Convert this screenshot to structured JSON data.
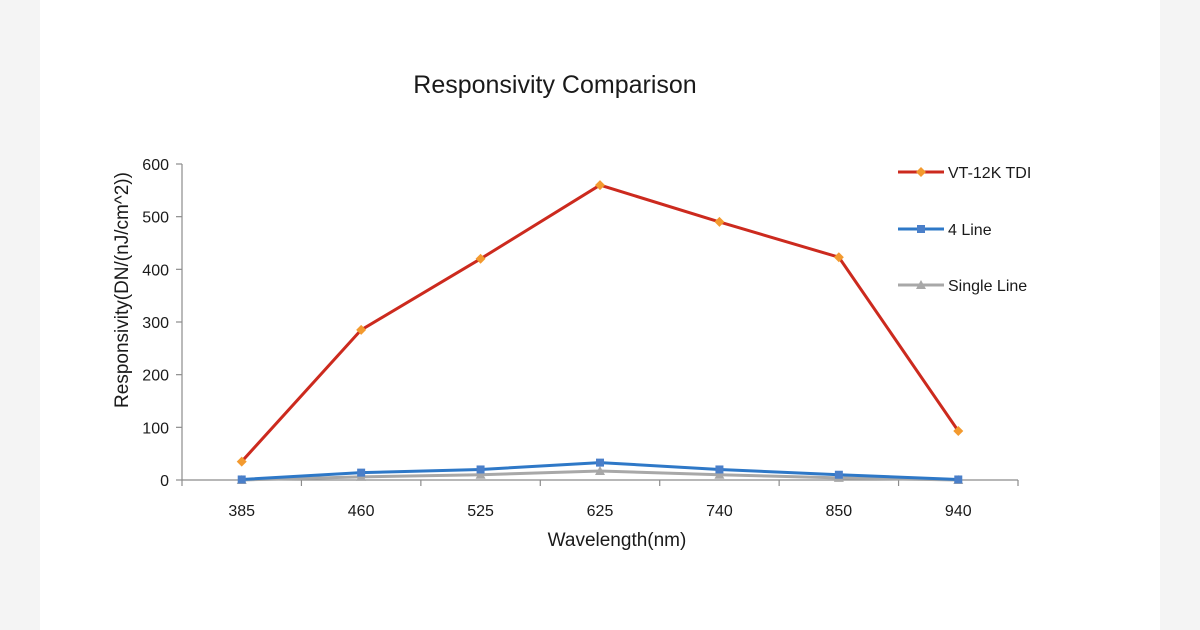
{
  "chart_data": {
    "type": "line",
    "title": "Responsivity Comparison",
    "xlabel": "Wavelength(nm)",
    "ylabel": "Responsivity(DN/(nJ/cm^2))",
    "categories": [
      "385",
      "460",
      "525",
      "625",
      "740",
      "850",
      "940"
    ],
    "ylim": [
      0,
      600
    ],
    "yticks": [
      0,
      100,
      200,
      300,
      400,
      500,
      600
    ],
    "grid": false,
    "legend_position": "right",
    "series": [
      {
        "name": "VT-12K TDI",
        "color": "#cc2a1e",
        "marker": "diamond",
        "marker_color": "#f39a2f",
        "values": [
          35,
          285,
          420,
          560,
          490,
          423,
          93
        ]
      },
      {
        "name": "4 Line",
        "color": "#2e78c7",
        "marker": "square",
        "marker_color": "#4a7fc9",
        "values": [
          1,
          14,
          20,
          33,
          20,
          10,
          1
        ]
      },
      {
        "name": "Single Line",
        "color": "#a8a8a8",
        "marker": "triangle",
        "marker_color": "#a8a8a8",
        "values": [
          0,
          6,
          10,
          17,
          10,
          4,
          0
        ]
      }
    ]
  }
}
